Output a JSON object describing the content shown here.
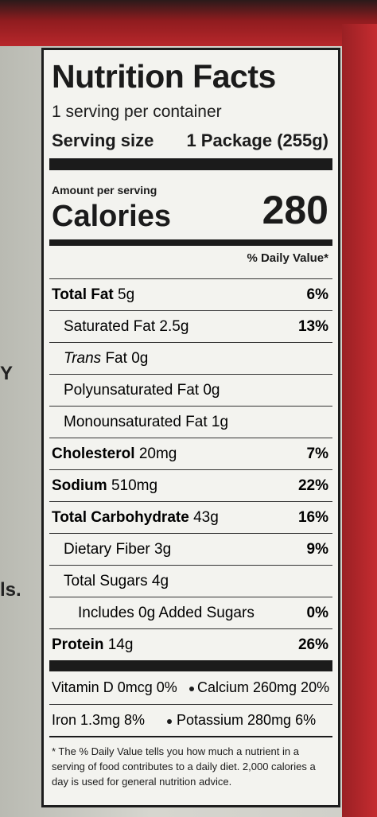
{
  "title": "Nutrition Facts",
  "servings_per_container": "1 serving per container",
  "serving_size": {
    "label": "Serving size",
    "value": "1 Package (255g)"
  },
  "amount_per_serving": "Amount per serving",
  "calories": {
    "label": "Calories",
    "value": "280"
  },
  "daily_value_header": "% Daily Value*",
  "nutrients": [
    {
      "name": "Total Fat",
      "amount": "5g",
      "dv": "6%"
    },
    {
      "name": "Saturated Fat",
      "amount": "2.5g",
      "dv": "13%"
    },
    {
      "name_italic": "Trans",
      "name": "Fat",
      "amount": "0g"
    },
    {
      "name": "Polyunsaturated Fat",
      "amount": "0g"
    },
    {
      "name": "Monounsaturated Fat",
      "amount": "1g"
    },
    {
      "name": "Cholesterol",
      "amount": "20mg",
      "dv": "7%"
    },
    {
      "name": "Sodium",
      "amount": "510mg",
      "dv": "22%"
    },
    {
      "name": "Total Carbohydrate",
      "amount": "43g",
      "dv": "16%"
    },
    {
      "name": "Dietary Fiber",
      "amount": "3g",
      "dv": "9%"
    },
    {
      "name": "Total Sugars",
      "amount": "4g"
    },
    {
      "name": "Includes 0g Added Sugars",
      "dv": "0%"
    },
    {
      "name": "Protein",
      "amount": "14g",
      "dv": "26%"
    }
  ],
  "vitamins": [
    [
      "Vitamin D 0mcg 0%",
      "Calcium 260mg 20%"
    ],
    [
      "Iron 1.3mg 8%",
      "Potassium 280mg 6%"
    ]
  ],
  "footnote": "* The % Daily Value tells you how much a nutrient in a serving of food contributes to a daily diet. 2,000 calories a day is used for general nutrition advice.",
  "side_text": [
    "Y",
    "ls."
  ]
}
